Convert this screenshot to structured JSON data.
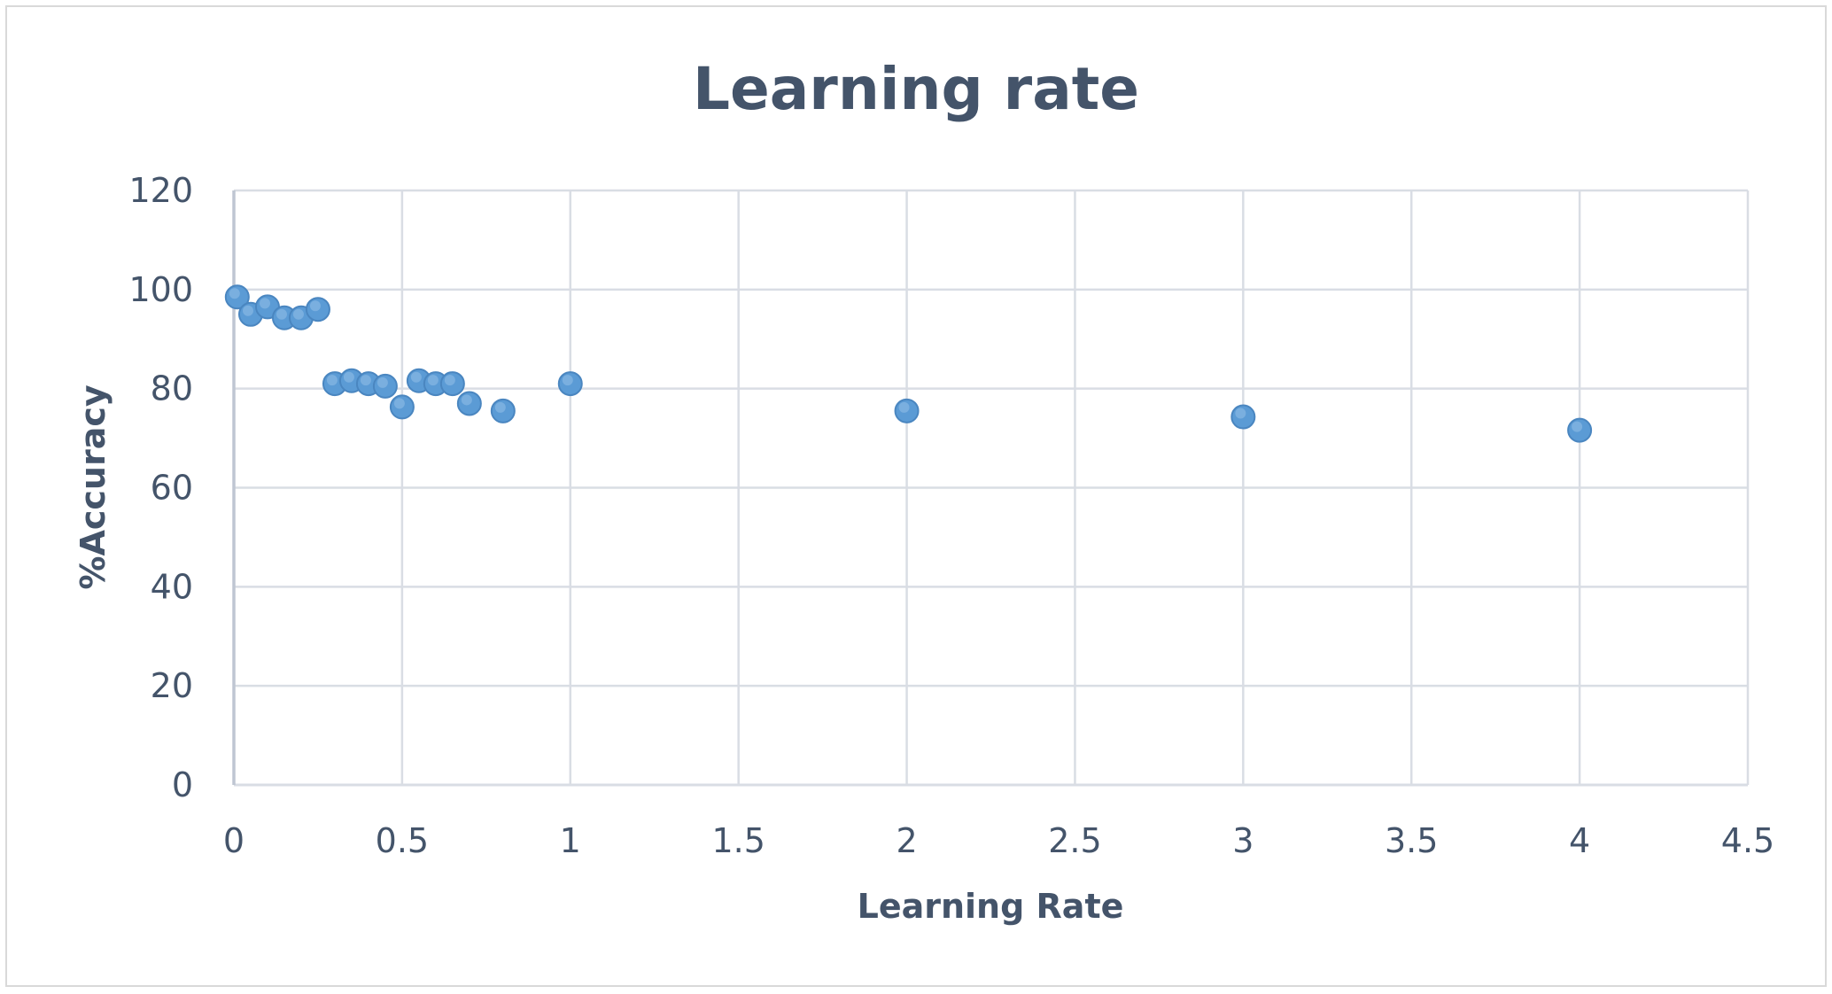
{
  "chart_data": {
    "type": "scatter",
    "title": "Learning rate",
    "xlabel": "Learning Rate",
    "ylabel": "%Accuracy",
    "xlim": [
      0,
      4.5
    ],
    "ylim": [
      0,
      120
    ],
    "xticks": [
      "0",
      "0.5",
      "1",
      "1.5",
      "2",
      "2.5",
      "3",
      "3.5",
      "4",
      "4.5"
    ],
    "yticks": [
      "0",
      "20",
      "40",
      "60",
      "80",
      "100",
      "120"
    ],
    "grid": true,
    "legend": "none",
    "marker_color": "#5b9bd5",
    "series": [
      {
        "x": [
          0.01,
          0.05,
          0.1,
          0.15,
          0.2,
          0.25,
          0.3,
          0.35,
          0.4,
          0.45,
          0.5,
          0.55,
          0.6,
          0.65,
          0.7,
          0.8,
          1,
          2,
          3,
          4
        ],
        "y": [
          98.5,
          95,
          96.5,
          94.3,
          94.3,
          96,
          81,
          81.6,
          81,
          80.5,
          76.3,
          81.6,
          81,
          81,
          77,
          75.5,
          81,
          75.5,
          74.3,
          71.6
        ]
      }
    ]
  }
}
